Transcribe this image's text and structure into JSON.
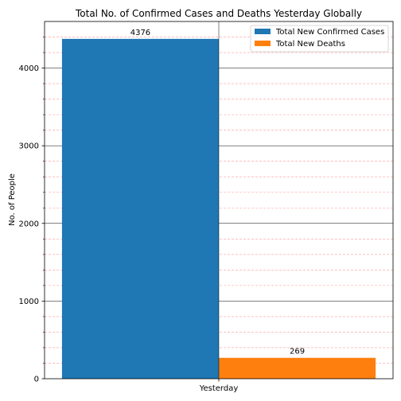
{
  "chart_data": {
    "type": "bar",
    "title": "Total No. of Confirmed Cases and Deaths Yesterday Globally",
    "xlabel": "",
    "ylabel": "No. of People",
    "categories": [
      "Yesterday"
    ],
    "series": [
      {
        "name": "Total New Confirmed Cases",
        "values": [
          4376
        ],
        "color": "#1f77b4",
        "label": "4376"
      },
      {
        "name": "Total New Deaths",
        "values": [
          269
        ],
        "color": "#ff7f0e",
        "label": "269"
      }
    ],
    "ylim": [
      0,
      4600
    ],
    "yticks": [
      "0",
      "1000",
      "2000",
      "3000",
      "4000"
    ],
    "grid": {
      "major": true,
      "major_color": "#000000",
      "minor": true,
      "minor_color": "#ff9999",
      "minor_step": 200
    },
    "legend": "top-right"
  }
}
